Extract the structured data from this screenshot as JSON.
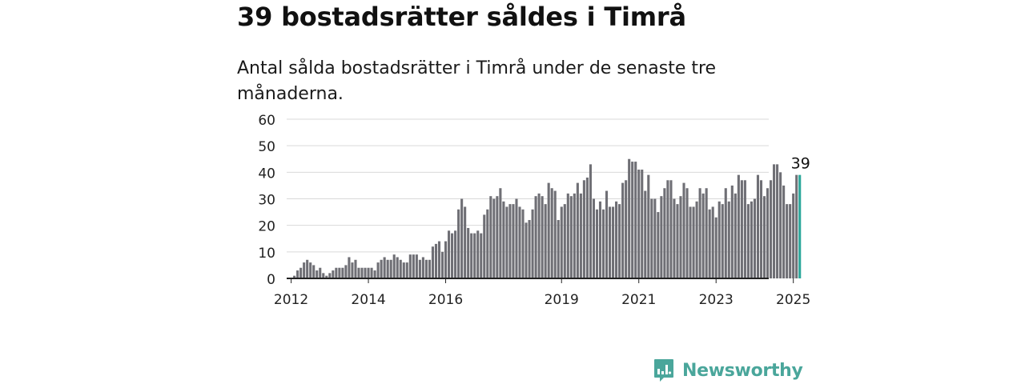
{
  "header": {
    "title": "39 bostadsrätter såldes i Timrå",
    "subtitle": "Antal sålda bostadsrätter i Timrå under de senaste tre månaderna."
  },
  "brand": {
    "name": "Newsworthy",
    "color": "#4aa69b",
    "icon": "newsworthy-logo-icon"
  },
  "chart_data": {
    "type": "bar",
    "title": "",
    "xlabel": "",
    "ylabel": "",
    "ylim": [
      0,
      60
    ],
    "yticks": [
      0,
      10,
      20,
      30,
      40,
      50,
      60
    ],
    "grid": true,
    "x_tick_labels": [
      "2012",
      "2014",
      "2016",
      "2019",
      "2021",
      "2023",
      "2025"
    ],
    "bar_color": "#6f6f75",
    "highlight_color": "#2ba79a",
    "highlight_label": "39",
    "start": "2011-12",
    "end": "2025-05",
    "values": [
      0,
      0,
      1,
      3,
      4,
      6,
      7,
      6,
      5,
      3,
      4,
      2,
      1,
      2,
      3,
      4,
      4,
      4,
      5,
      8,
      6,
      7,
      4,
      4,
      4,
      4,
      4,
      3,
      6,
      7,
      8,
      7,
      7,
      9,
      8,
      7,
      6,
      6,
      9,
      9,
      9,
      7,
      8,
      7,
      7,
      12,
      13,
      14,
      10,
      14,
      18,
      17,
      18,
      26,
      30,
      27,
      19,
      17,
      17,
      18,
      17,
      24,
      26,
      31,
      30,
      31,
      34,
      29,
      27,
      28,
      28,
      30,
      27,
      26,
      21,
      22,
      26,
      31,
      32,
      31,
      28,
      36,
      34,
      33,
      22,
      27,
      28,
      32,
      31,
      32,
      36,
      32,
      37,
      38,
      43,
      30,
      26,
      29,
      26,
      33,
      27,
      27,
      29,
      28,
      36,
      37,
      45,
      44,
      44,
      41,
      41,
      33,
      39,
      30,
      30,
      25,
      31,
      34,
      37,
      37,
      30,
      28,
      31,
      36,
      34,
      27,
      27,
      29,
      34,
      32,
      34,
      26,
      27,
      23,
      29,
      28,
      34,
      29,
      35,
      32,
      39,
      37,
      37,
      28,
      29,
      30,
      39,
      37,
      31,
      34,
      37,
      43,
      43,
      40,
      35,
      28,
      28,
      32,
      39,
      39
    ]
  }
}
